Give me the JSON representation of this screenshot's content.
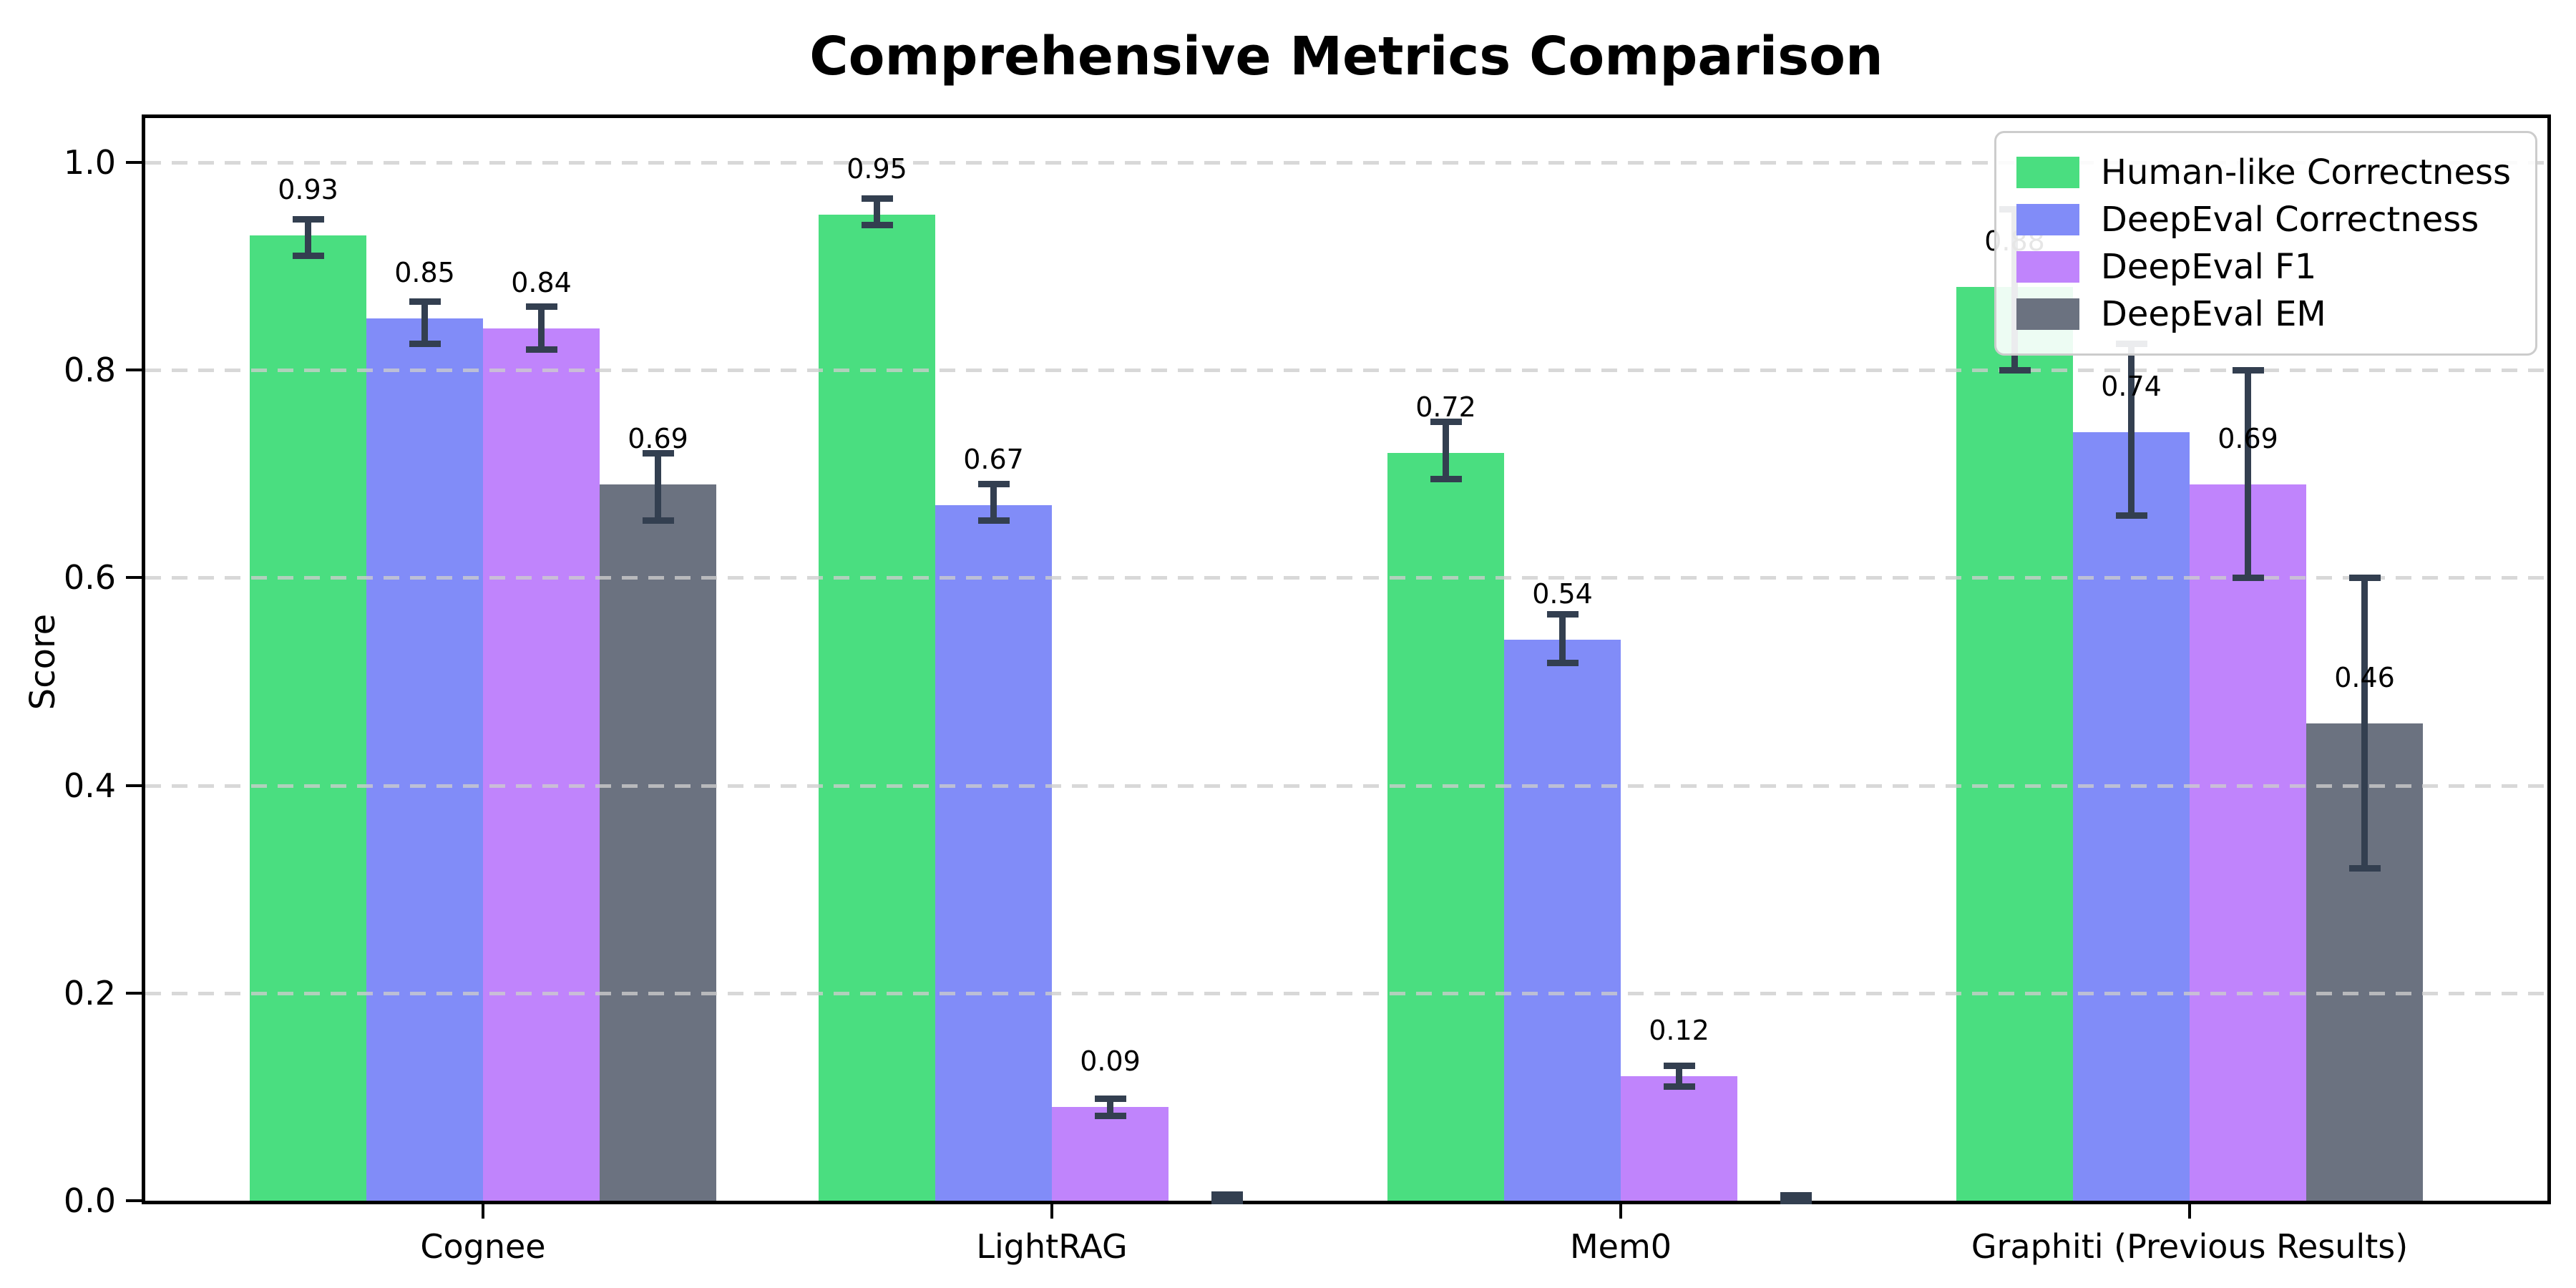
{
  "title": "Comprehensive Metrics Comparison",
  "chart_data": {
    "type": "bar",
    "title": "Comprehensive Metrics Comparison",
    "xlabel": "",
    "ylabel": "Score",
    "ylim": [
      0.0,
      1.05
    ],
    "yticks": [
      "0.0",
      "0.2",
      "0.4",
      "0.6",
      "0.8",
      "1.0"
    ],
    "grid": "horizontal-dashed",
    "legend_position": "upper right",
    "errorbar_color": "#333f50",
    "categories": [
      "Cognee",
      "LightRAG",
      "Mem0",
      "Graphiti (Previous Results)"
    ],
    "series": [
      {
        "name": "Human-like Correctness",
        "color": "#4ade80",
        "values": [
          0.93,
          0.95,
          0.72,
          0.88
        ],
        "labels": [
          "0.93",
          "0.95",
          "0.72",
          "0.88"
        ],
        "err_lo": [
          0.91,
          0.94,
          0.695,
          0.8
        ],
        "err_hi": [
          0.945,
          0.965,
          0.75,
          0.955
        ]
      },
      {
        "name": "DeepEval Correctness",
        "color": "#818cf8",
        "values": [
          0.85,
          0.67,
          0.54,
          0.74
        ],
        "labels": [
          "0.85",
          "0.67",
          "0.54",
          "0.74"
        ],
        "err_lo": [
          0.825,
          0.655,
          0.518,
          0.66
        ],
        "err_hi": [
          0.866,
          0.69,
          0.565,
          0.825
        ]
      },
      {
        "name": "DeepEval F1",
        "color": "#c084fc",
        "values": [
          0.84,
          0.09,
          0.12,
          0.69
        ],
        "labels": [
          "0.84",
          "0.09",
          "0.12",
          "0.69"
        ],
        "err_lo": [
          0.82,
          0.082,
          0.11,
          0.6
        ],
        "err_hi": [
          0.861,
          0.098,
          0.13,
          0.8
        ]
      },
      {
        "name": "DeepEval EM",
        "color": "#6b7280",
        "values": [
          0.69,
          0.0,
          0.0,
          0.46
        ],
        "labels": [
          "0.69",
          null,
          null,
          "0.46"
        ],
        "err_lo": [
          0.655,
          0.0,
          0.0,
          0.32
        ],
        "err_hi": [
          0.72,
          0.006,
          0.005,
          0.6
        ]
      }
    ]
  }
}
